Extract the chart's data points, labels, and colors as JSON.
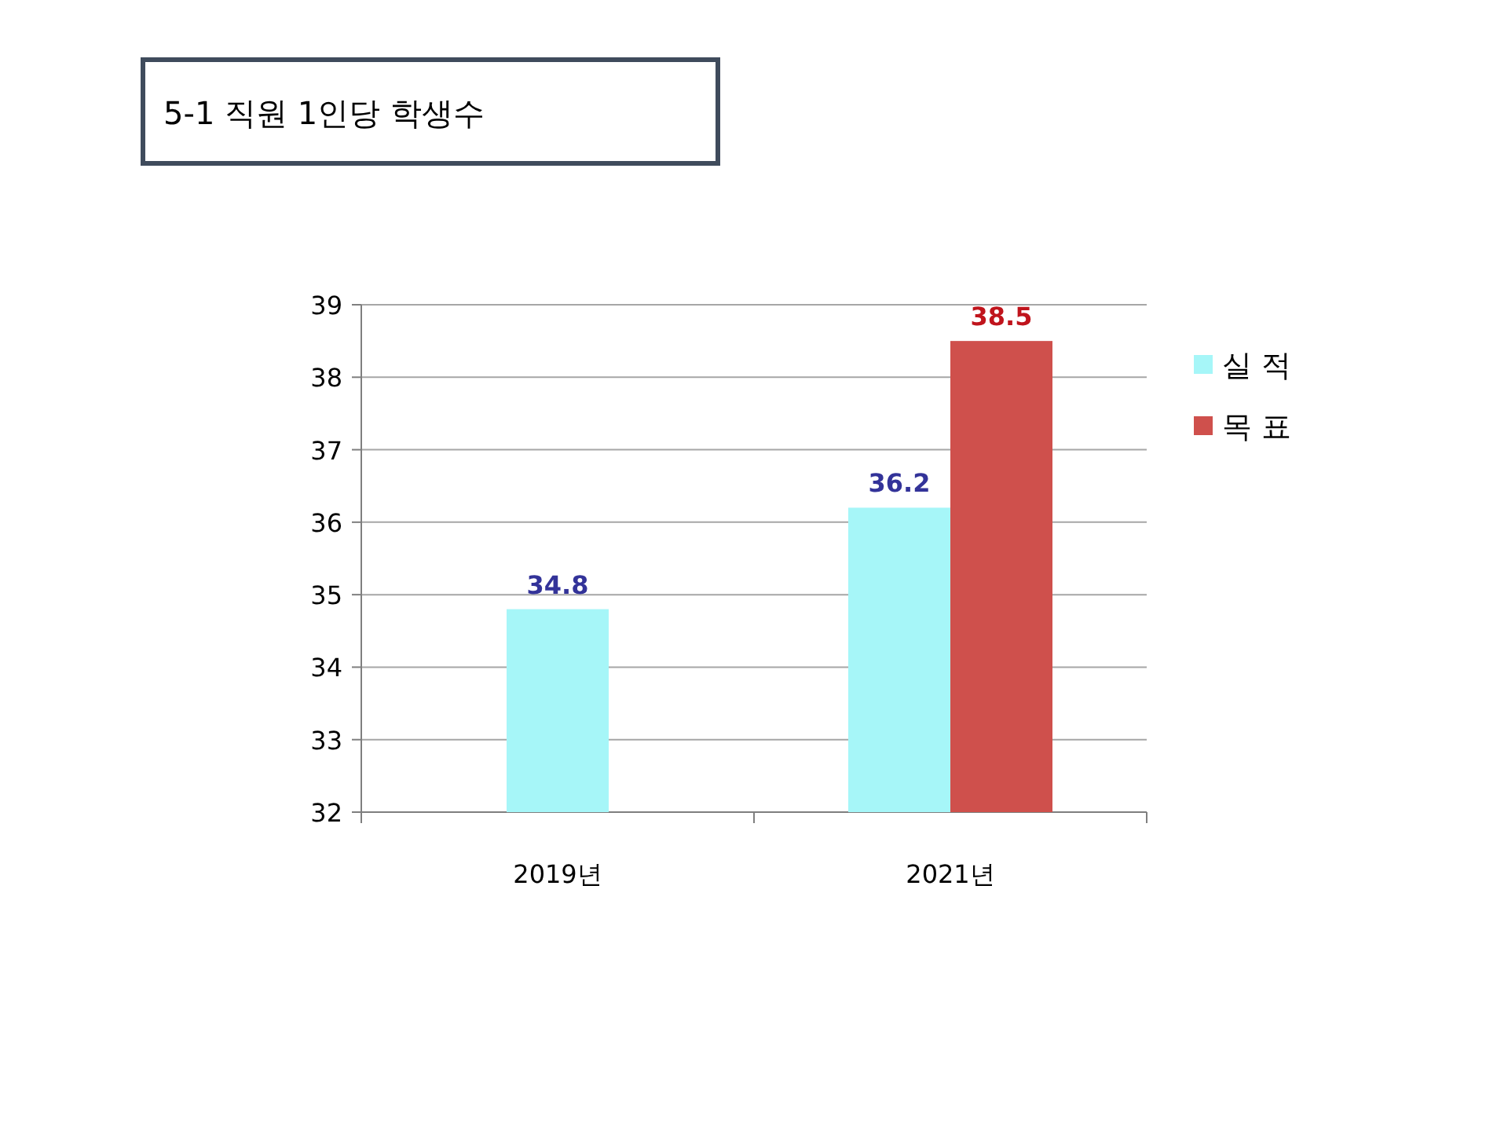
{
  "chart_data": {
    "type": "bar",
    "title": "5-1 직원 1인당 학생수",
    "categories": [
      "2019년",
      "2021년"
    ],
    "series": [
      {
        "name": "실 적",
        "color": "#a6f6f8",
        "values": [
          34.8,
          36.2
        ]
      },
      {
        "name": "목 표",
        "color": "#cf504c",
        "values": [
          null,
          38.5
        ]
      }
    ],
    "ylim": [
      32,
      39
    ],
    "yticks": [
      32,
      33,
      34,
      35,
      36,
      37,
      38,
      39
    ],
    "grid": "y",
    "legend": "right",
    "data_labels": true
  }
}
